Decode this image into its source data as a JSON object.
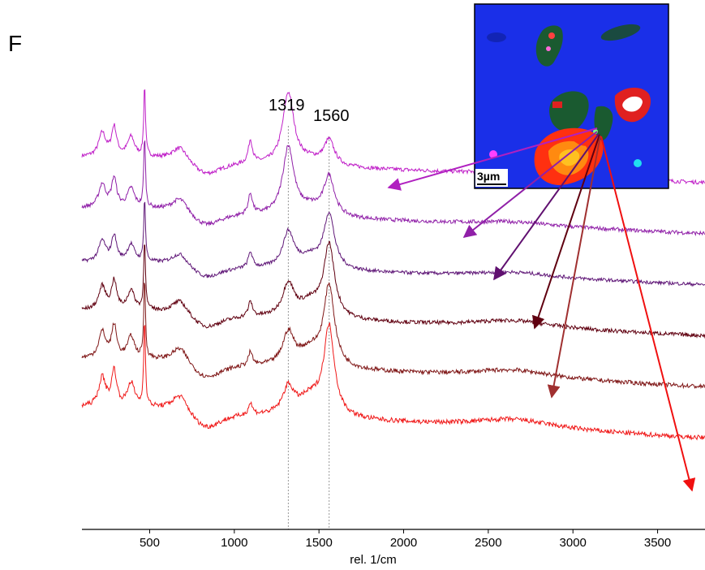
{
  "panel_label": "F",
  "chart_data": {
    "type": "line",
    "xlabel": "rel. 1/cm",
    "xlim": [
      100,
      3780
    ],
    "x_ticks": [
      500,
      1000,
      1500,
      2000,
      2500,
      3000,
      3500
    ],
    "y_ticks": [],
    "grid": false,
    "legend": "none",
    "peaks": [
      {
        "label": "1319",
        "x": 1319
      },
      {
        "label": "1560",
        "x": 1560
      }
    ],
    "inset": {
      "type": "raman-map",
      "scale_bar_label": "3µm",
      "background_color": "#1a2fe8"
    },
    "series": [
      {
        "color": "#c020c8",
        "offset": 0,
        "intensity": 0.45,
        "d_ratio": 1.0,
        "g_ratio": 0.35,
        "baseline": [
          [
            100,
            0.2
          ],
          [
            500,
            0.2
          ],
          [
            1500,
            0.12
          ],
          [
            3780,
            0.0
          ]
        ]
      },
      {
        "color": "#9020a8",
        "offset": 1,
        "intensity": 0.45,
        "d_ratio": 0.95,
        "g_ratio": 0.55,
        "baseline": [
          [
            100,
            0.2
          ],
          [
            500,
            0.2
          ],
          [
            1500,
            0.12
          ],
          [
            3780,
            0.0
          ]
        ]
      },
      {
        "color": "#601878",
        "offset": 2,
        "intensity": 0.4,
        "d_ratio": 0.55,
        "g_ratio": 0.85,
        "baseline": [
          [
            100,
            0.2
          ],
          [
            500,
            0.2
          ],
          [
            1500,
            0.12
          ],
          [
            3780,
            0.0
          ]
        ]
      },
      {
        "color": "#600010",
        "offset": 3,
        "intensity": 0.45,
        "d_ratio": 0.45,
        "g_ratio": 1.0,
        "baseline": [
          [
            100,
            0.2
          ],
          [
            500,
            0.2
          ],
          [
            1500,
            0.12
          ],
          [
            3780,
            0.0
          ]
        ]
      },
      {
        "color": "#801818",
        "offset": 4,
        "intensity": 0.5,
        "d_ratio": 0.4,
        "g_ratio": 1.0,
        "baseline": [
          [
            100,
            0.2
          ],
          [
            500,
            0.2
          ],
          [
            1500,
            0.12
          ],
          [
            3780,
            0.0
          ]
        ]
      },
      {
        "color": "#f01818",
        "offset": 5,
        "intensity": 0.55,
        "d_ratio": 0.3,
        "g_ratio": 1.0,
        "baseline": [
          [
            100,
            0.2
          ],
          [
            500,
            0.2
          ],
          [
            1500,
            0.12
          ],
          [
            3780,
            0.0
          ]
        ]
      }
    ]
  }
}
